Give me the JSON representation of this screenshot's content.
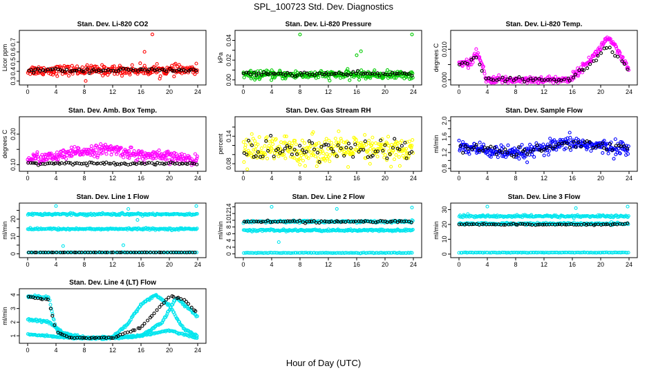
{
  "figure": {
    "title": "SPL_100723  Std. Dev. Diagnostics",
    "xlabel": "Hour of Day (UTC)"
  },
  "chart_data": [
    {
      "id": "co2",
      "type": "scatter",
      "title": "Stan. Dev. Li-820 CO2",
      "ylabel": "Licor ppm",
      "xlim": [
        0,
        24
      ],
      "ylim": [
        0.28,
        0.8
      ],
      "xticks": [
        0,
        4,
        8,
        12,
        16,
        20,
        24
      ],
      "yticks": [
        0.3,
        0.4,
        0.5,
        0.6,
        0.7
      ],
      "series": [
        {
          "color": "#ff0000",
          "pattern": "band",
          "center": 0.41,
          "spread": 0.05,
          "n": 300,
          "outliers": [
            [
              17.6,
              0.78
            ],
            [
              8.2,
              0.3
            ],
            [
              16.5,
              0.6
            ]
          ]
        },
        {
          "color": "#000000",
          "pattern": "band",
          "center": 0.41,
          "spread": 0.02,
          "n": 70
        }
      ]
    },
    {
      "id": "pressure",
      "type": "scatter",
      "title": "Stan. Dev. Li-820 Pressure",
      "ylabel": "kPa",
      "xlim": [
        0,
        24
      ],
      "ylim": [
        -0.003,
        0.048
      ],
      "xticks": [
        0,
        4,
        8,
        12,
        16,
        20,
        24
      ],
      "yticks": [
        0.0,
        0.01,
        0.02,
        0.03,
        0.04
      ],
      "yticklabels": [
        "0.00",
        "",
        "0.02",
        "",
        "0.04"
      ],
      "series": [
        {
          "color": "#00cc00",
          "pattern": "band",
          "center": 0.005,
          "spread": 0.004,
          "n": 300,
          "outliers": [
            [
              8.0,
              0.046
            ],
            [
              23.8,
              0.046
            ],
            [
              16.6,
              0.029
            ],
            [
              16.0,
              0.025
            ]
          ]
        },
        {
          "color": "#000000",
          "pattern": "band",
          "center": 0.006,
          "spread": 0.002,
          "n": 70
        }
      ]
    },
    {
      "id": "temp",
      "type": "scatter",
      "title": "Stan. Dev. Li-820 Temp.",
      "ylabel": "degrees C",
      "xlim": [
        0,
        24
      ],
      "ylim": [
        -0.001,
        0.0155
      ],
      "xticks": [
        0,
        4,
        8,
        12,
        16,
        20,
        24
      ],
      "yticks": [
        0.0,
        0.005,
        0.01
      ],
      "yticklabels": [
        "0.000",
        "",
        "0.010"
      ],
      "series": [
        {
          "color": "#ff00ff",
          "pattern": "path",
          "path": [
            [
              0,
              0.006
            ],
            [
              1.5,
              0.005
            ],
            [
              2.5,
              0.009
            ],
            [
              3.4,
              0.004
            ],
            [
              3.8,
              0.0
            ],
            [
              15.5,
              0.0
            ],
            [
              17,
              0.003
            ],
            [
              19.5,
              0.009
            ],
            [
              21,
              0.014
            ],
            [
              22.5,
              0.009
            ],
            [
              24,
              0.003
            ]
          ],
          "spread": 0.0012,
          "n": 300
        },
        {
          "color": "#000000",
          "pattern": "path",
          "path": [
            [
              0,
              0.005
            ],
            [
              2.5,
              0.007
            ],
            [
              3.8,
              0.0
            ],
            [
              15.5,
              0.0
            ],
            [
              19,
              0.006
            ],
            [
              21,
              0.011
            ],
            [
              24,
              0.003
            ]
          ],
          "spread": 0.0008,
          "n": 60
        }
      ]
    },
    {
      "id": "ambbox",
      "type": "scatter",
      "title": "Stan. Dev. Amb. Box Temp.",
      "ylabel": "degrees C",
      "xlim": [
        0,
        24
      ],
      "ylim": [
        0.085,
        0.25
      ],
      "xticks": [
        0,
        4,
        8,
        12,
        16,
        20,
        24
      ],
      "yticks": [
        0.1,
        0.15,
        0.2
      ],
      "yticklabels": [
        "0.10",
        "",
        "0.20"
      ],
      "series": [
        {
          "color": "#ff00ff",
          "pattern": "path",
          "path": [
            [
              0,
              0.12
            ],
            [
              4,
              0.125
            ],
            [
              8,
              0.145
            ],
            [
              12,
              0.15
            ],
            [
              16,
              0.13
            ],
            [
              20,
              0.125
            ],
            [
              24,
              0.115
            ]
          ],
          "spread": 0.018,
          "n": 320
        },
        {
          "color": "#000000",
          "pattern": "band",
          "center": 0.104,
          "spread": 0.004,
          "n": 80
        }
      ]
    },
    {
      "id": "rh",
      "type": "scatter",
      "title": "Stan. Dev. Gas Stream RH",
      "ylabel": "percent",
      "xlim": [
        0,
        24
      ],
      "ylim": [
        0.068,
        0.178
      ],
      "xticks": [
        0,
        4,
        8,
        12,
        16,
        20,
        24
      ],
      "yticks": [
        0.08,
        0.1,
        0.12,
        0.14,
        0.16
      ],
      "yticklabels": [
        "0.08",
        "",
        "",
        "0.14",
        ""
      ],
      "series": [
        {
          "color": "#ffff00",
          "pattern": "band",
          "center": 0.11,
          "spread": 0.03,
          "n": 320
        },
        {
          "color": "#000000",
          "pattern": "band",
          "center": 0.11,
          "spread": 0.025,
          "n": 70
        }
      ]
    },
    {
      "id": "sampleflow",
      "type": "scatter",
      "title": "Stan. Dev. Sample Flow",
      "ylabel": "ml/min",
      "xlim": [
        0,
        24
      ],
      "ylim": [
        0.78,
        2.05
      ],
      "xticks": [
        0,
        4,
        8,
        12,
        16,
        20,
        24
      ],
      "yticks": [
        0.8,
        1.0,
        1.2,
        1.4,
        1.6,
        1.8,
        2.0
      ],
      "yticklabels": [
        "0.8",
        "",
        "1.2",
        "",
        "1.6",
        "",
        "2.0"
      ],
      "series": [
        {
          "color": "#0000ff",
          "pattern": "path",
          "path": [
            [
              0,
              1.35
            ],
            [
              4,
              1.25
            ],
            [
              8,
              1.15
            ],
            [
              12,
              1.3
            ],
            [
              16,
              1.45
            ],
            [
              20,
              1.35
            ],
            [
              24,
              1.3
            ]
          ],
          "spread": 0.17,
          "n": 320
        },
        {
          "color": "#000000",
          "pattern": "path",
          "path": [
            [
              0,
              1.35
            ],
            [
              4,
              1.25
            ],
            [
              8,
              1.2
            ],
            [
              12,
              1.3
            ],
            [
              16,
              1.5
            ],
            [
              20,
              1.35
            ],
            [
              24,
              1.35
            ]
          ],
          "spread": 0.12,
          "n": 60
        }
      ]
    },
    {
      "id": "line1",
      "type": "scatter",
      "title": "Stan. Dev. Line 1 Flow",
      "ylabel": "ml/min",
      "xlim": [
        0,
        24
      ],
      "ylim": [
        -1,
        28
      ],
      "xticks": [
        0,
        4,
        8,
        12,
        16,
        20,
        24
      ],
      "yticks": [
        0,
        5,
        10,
        15,
        20,
        25
      ],
      "yticklabels": [
        "0",
        "",
        "10",
        "",
        "20",
        ""
      ],
      "series": [
        {
          "color": "#00e5ee",
          "pattern": "band",
          "center": 22.8,
          "spread": 0.6,
          "n": 200,
          "outliers": [
            [
              4.0,
              27.5
            ],
            [
              14.2,
              25.8
            ],
            [
              15.5,
              19.5
            ],
            [
              23.8,
              27.5
            ]
          ]
        },
        {
          "color": "#00e5ee",
          "pattern": "band",
          "center": 14.3,
          "spread": 0.5,
          "n": 200,
          "outliers": [
            [
              5.0,
              4.5
            ],
            [
              13.5,
              5.0
            ]
          ]
        },
        {
          "color": "#00e5ee",
          "pattern": "band",
          "center": 0.8,
          "spread": 0.1,
          "n": 120
        },
        {
          "color": "#000000",
          "pattern": "band",
          "center": 0.8,
          "spread": 0.05,
          "n": 60
        }
      ]
    },
    {
      "id": "line2",
      "type": "scatter",
      "title": "Stan. Dev. Line 2 Flow",
      "ylabel": "ml/min",
      "xlim": [
        0,
        24
      ],
      "ylim": [
        -0.5,
        14.5
      ],
      "xticks": [
        0,
        4,
        8,
        12,
        16,
        20,
        24
      ],
      "yticks": [
        0,
        2,
        4,
        6,
        8,
        10,
        12,
        14
      ],
      "yticklabels": [
        "0",
        "2",
        "4",
        "6",
        "8",
        "10",
        "12",
        "14"
      ],
      "series": [
        {
          "color": "#00e5ee",
          "pattern": "band",
          "center": 9.6,
          "spread": 0.35,
          "n": 200,
          "outliers": [
            [
              4.0,
              14.0
            ],
            [
              13.2,
              13.4
            ],
            [
              23.8,
              13.8
            ]
          ]
        },
        {
          "color": "#00e5ee",
          "pattern": "band",
          "center": 7.0,
          "spread": 0.3,
          "n": 200,
          "outliers": [
            [
              5.0,
              3.5
            ]
          ]
        },
        {
          "color": "#00e5ee",
          "pattern": "band",
          "center": 0.3,
          "spread": 0.1,
          "n": 120
        },
        {
          "color": "#000000",
          "pattern": "band",
          "center": 9.6,
          "spread": 0.3,
          "n": 70
        }
      ]
    },
    {
      "id": "line3",
      "type": "scatter",
      "title": "Stan. Dev. Line 3 Flow",
      "ylabel": "ml/min",
      "xlim": [
        0,
        24
      ],
      "ylim": [
        -1,
        33
      ],
      "xticks": [
        0,
        4,
        8,
        12,
        16,
        20,
        24
      ],
      "yticks": [
        0,
        10,
        20,
        30
      ],
      "series": [
        {
          "color": "#00e5ee",
          "pattern": "band",
          "center": 25.5,
          "spread": 0.8,
          "n": 200,
          "outliers": [
            [
              4.0,
              32.0
            ],
            [
              16.5,
              31.0
            ],
            [
              23.8,
              32.0
            ]
          ]
        },
        {
          "color": "#00e5ee",
          "pattern": "band",
          "center": 20.5,
          "spread": 0.7,
          "n": 200
        },
        {
          "color": "#00e5ee",
          "pattern": "band",
          "center": 1.0,
          "spread": 0.2,
          "n": 120
        },
        {
          "color": "#000000",
          "pattern": "band",
          "center": 20.0,
          "spread": 0.5,
          "n": 70
        }
      ]
    },
    {
      "id": "line4",
      "type": "scatter",
      "title": "Stan. Dev. Line 4 (LT) Flow",
      "ylabel": "ml/min",
      "xlim": [
        0,
        24
      ],
      "ylim": [
        0.6,
        4.3
      ],
      "xticks": [
        0,
        4,
        8,
        12,
        16,
        20,
        24
      ],
      "yticks": [
        1,
        2,
        3,
        4
      ],
      "series": [
        {
          "color": "#00e5ee",
          "pattern": "path",
          "path": [
            [
              0,
              3.9
            ],
            [
              3,
              3.8
            ],
            [
              4,
              1.5
            ],
            [
              5,
              1.0
            ],
            [
              8,
              0.8
            ],
            [
              12,
              0.9
            ],
            [
              14,
              1.8
            ],
            [
              16,
              3.3
            ],
            [
              18,
              4.0
            ],
            [
              20,
              3.2
            ],
            [
              22,
              1.5
            ],
            [
              24,
              1.0
            ]
          ],
          "spread": 0.08,
          "n": 220
        },
        {
          "color": "#00e5ee",
          "pattern": "path",
          "path": [
            [
              0,
              2.2
            ],
            [
              3,
              2.0
            ],
            [
              5,
              1.2
            ],
            [
              8,
              0.85
            ],
            [
              13,
              0.85
            ],
            [
              16,
              1.0
            ],
            [
              19,
              2.0
            ],
            [
              21,
              3.8
            ],
            [
              24,
              2.4
            ]
          ],
          "spread": 0.08,
          "n": 220
        },
        {
          "color": "#00e5ee",
          "pattern": "path",
          "path": [
            [
              0,
              1.1
            ],
            [
              6,
              0.85
            ],
            [
              12,
              0.85
            ],
            [
              16,
              1.0
            ],
            [
              20,
              1.4
            ],
            [
              24,
              0.8
            ]
          ],
          "spread": 0.06,
          "n": 180
        },
        {
          "color": "#000000",
          "pattern": "path",
          "path": [
            [
              0,
              3.9
            ],
            [
              3,
              3.6
            ],
            [
              4,
              1.3
            ],
            [
              6,
              0.85
            ],
            [
              12,
              0.85
            ],
            [
              16,
              1.6
            ],
            [
              20,
              3.9
            ],
            [
              22,
              3.7
            ],
            [
              24,
              2.6
            ]
          ],
          "spread": 0.05,
          "n": 70
        }
      ]
    }
  ]
}
